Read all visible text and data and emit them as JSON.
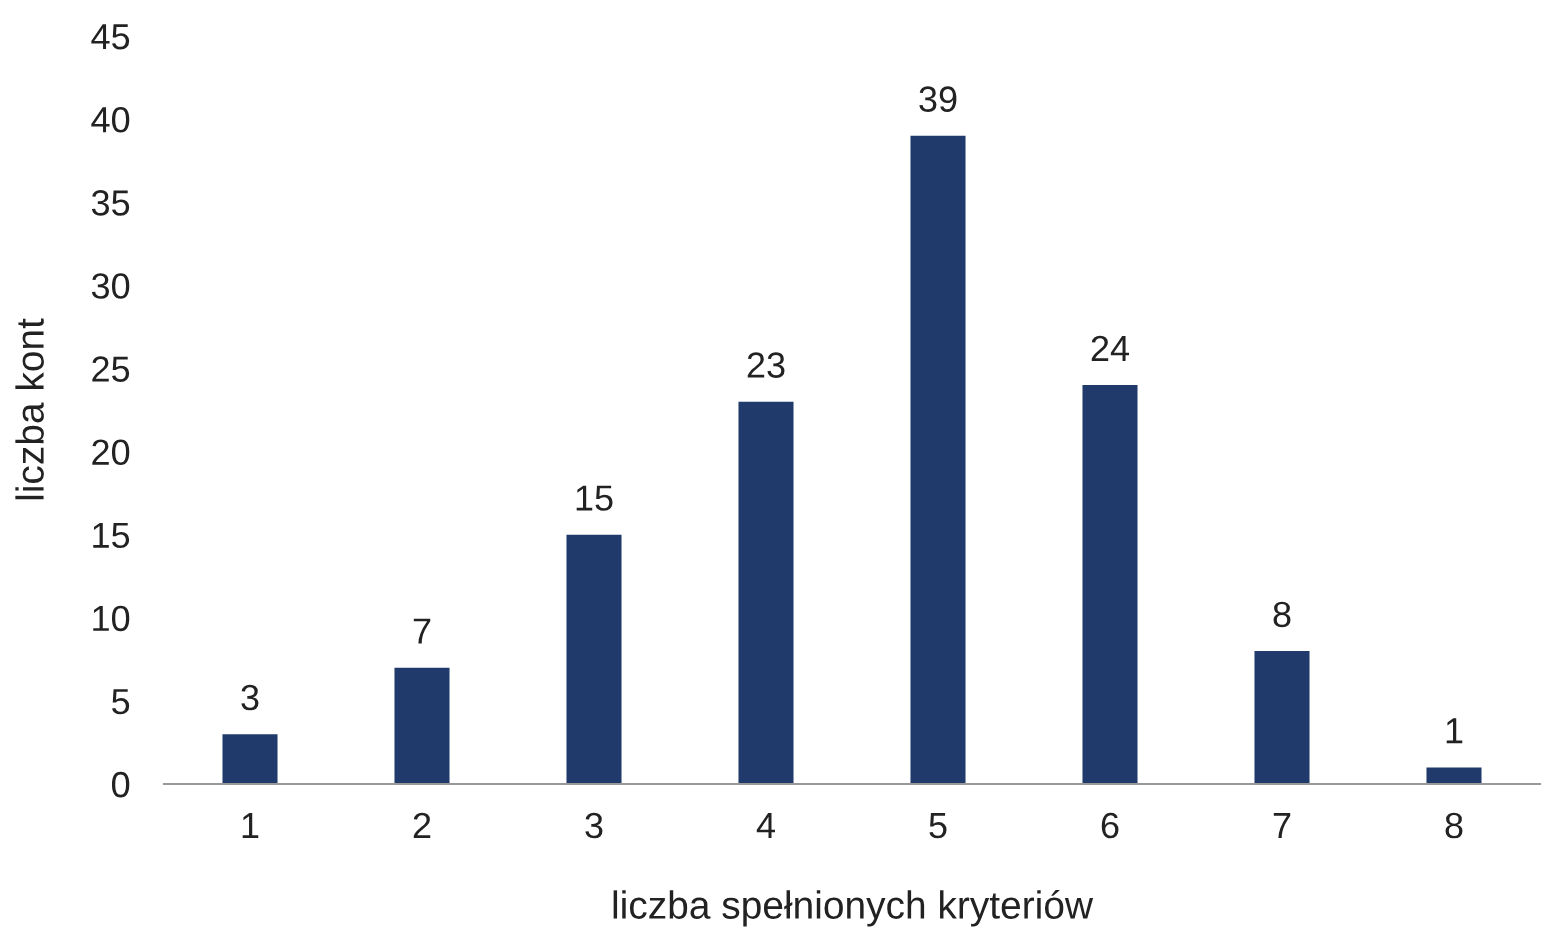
{
  "chart_data": {
    "type": "bar",
    "xlabel": "liczba spełnionych kryteriów",
    "ylabel": "liczba kont",
    "categories": [
      "1",
      "2",
      "3",
      "4",
      "5",
      "6",
      "7",
      "8"
    ],
    "values": [
      3,
      7,
      15,
      23,
      39,
      24,
      8,
      1
    ],
    "color": "#1f3a6b",
    "ylim": [
      0,
      45
    ],
    "yticks": [
      0,
      5,
      10,
      15,
      20,
      25,
      30,
      35,
      40,
      45
    ],
    "data_labels": true,
    "grid": false,
    "legend": false
  }
}
